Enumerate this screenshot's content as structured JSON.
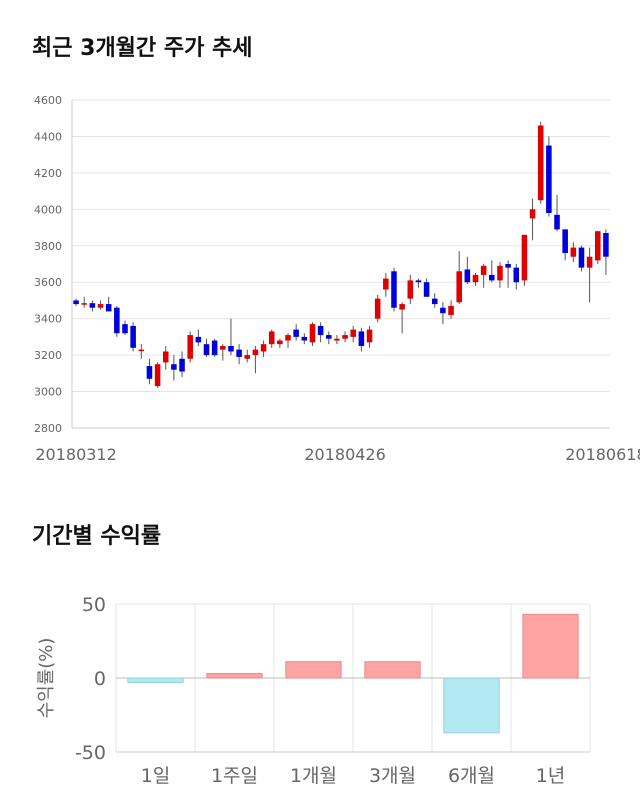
{
  "sections": {
    "price_title": "최근 3개월간 주가 추세",
    "returns_title": "기간별 수익률"
  },
  "chart_data": [
    {
      "type": "candlestick",
      "title": "최근 3개월간 주가 추세",
      "ylim": [
        2800,
        4600
      ],
      "yticks": [
        2800,
        3000,
        3200,
        3400,
        3600,
        3800,
        4000,
        4200,
        4400,
        4600
      ],
      "xtick_labels": [
        {
          "index": 0,
          "label": "20180312"
        },
        {
          "index": 33,
          "label": "20180426"
        },
        {
          "index": 65,
          "label": "20180618"
        }
      ],
      "grid": true,
      "colors": {
        "up": "#e00000",
        "down": "#0000dd",
        "wick": "#555555"
      },
      "candles": [
        [
          3500,
          3510,
          3470,
          3480
        ],
        [
          3480,
          3520,
          3460,
          3485
        ],
        [
          3485,
          3500,
          3440,
          3460
        ],
        [
          3460,
          3500,
          3450,
          3480
        ],
        [
          3480,
          3520,
          3440,
          3440
        ],
        [
          3460,
          3470,
          3300,
          3320
        ],
        [
          3370,
          3390,
          3310,
          3320
        ],
        [
          3360,
          3380,
          3220,
          3240
        ],
        [
          3230,
          3260,
          3180,
          3230
        ],
        [
          3140,
          3180,
          3040,
          3070
        ],
        [
          3030,
          3160,
          3020,
          3150
        ],
        [
          3160,
          3250,
          3120,
          3220
        ],
        [
          3150,
          3200,
          3060,
          3120
        ],
        [
          3180,
          3220,
          3080,
          3110
        ],
        [
          3180,
          3330,
          3160,
          3310
        ],
        [
          3300,
          3340,
          3250,
          3270
        ],
        [
          3260,
          3290,
          3190,
          3200
        ],
        [
          3280,
          3290,
          3190,
          3200
        ],
        [
          3230,
          3260,
          3170,
          3250
        ],
        [
          3250,
          3400,
          3200,
          3220
        ],
        [
          3230,
          3260,
          3150,
          3190
        ],
        [
          3180,
          3230,
          3160,
          3200
        ],
        [
          3200,
          3250,
          3100,
          3230
        ],
        [
          3220,
          3280,
          3190,
          3260
        ],
        [
          3260,
          3340,
          3240,
          3330
        ],
        [
          3260,
          3290,
          3240,
          3280
        ],
        [
          3280,
          3320,
          3240,
          3310
        ],
        [
          3340,
          3370,
          3280,
          3300
        ],
        [
          3300,
          3320,
          3260,
          3280
        ],
        [
          3270,
          3380,
          3250,
          3370
        ],
        [
          3360,
          3380,
          3270,
          3310
        ],
        [
          3310,
          3330,
          3260,
          3290
        ],
        [
          3280,
          3310,
          3260,
          3290
        ],
        [
          3290,
          3330,
          3270,
          3310
        ],
        [
          3300,
          3360,
          3270,
          3340
        ],
        [
          3330,
          3350,
          3220,
          3250
        ],
        [
          3270,
          3360,
          3240,
          3340
        ],
        [
          3400,
          3530,
          3380,
          3510
        ],
        [
          3560,
          3650,
          3520,
          3620
        ],
        [
          3660,
          3680,
          3440,
          3460
        ],
        [
          3450,
          3490,
          3320,
          3480
        ],
        [
          3510,
          3640,
          3480,
          3610
        ],
        [
          3610,
          3620,
          3570,
          3600
        ],
        [
          3600,
          3620,
          3530,
          3520
        ],
        [
          3510,
          3540,
          3460,
          3480
        ],
        [
          3460,
          3490,
          3370,
          3430
        ],
        [
          3420,
          3500,
          3400,
          3470
        ],
        [
          3490,
          3770,
          3480,
          3660
        ],
        [
          3670,
          3740,
          3590,
          3600
        ],
        [
          3600,
          3650,
          3580,
          3640
        ],
        [
          3640,
          3700,
          3570,
          3690
        ],
        [
          3640,
          3720,
          3600,
          3610
        ],
        [
          3610,
          3710,
          3570,
          3690
        ],
        [
          3700,
          3720,
          3570,
          3680
        ],
        [
          3680,
          3700,
          3560,
          3600
        ],
        [
          3610,
          3860,
          3580,
          3860
        ],
        [
          3950,
          4060,
          3830,
          4000
        ],
        [
          4050,
          4480,
          4030,
          4460
        ],
        [
          4350,
          4400,
          3960,
          3980
        ],
        [
          3970,
          4080,
          3880,
          3890
        ],
        [
          3890,
          3890,
          3720,
          3760
        ],
        [
          3740,
          3820,
          3710,
          3790
        ],
        [
          3790,
          3800,
          3660,
          3680
        ],
        [
          3680,
          3790,
          3490,
          3740
        ],
        [
          3720,
          3880,
          3700,
          3880
        ],
        [
          3870,
          3890,
          3640,
          3740
        ]
      ]
    },
    {
      "type": "bar",
      "title": "기간별 수익률",
      "ylabel": "수익률(%)",
      "ylim": [
        -50,
        50
      ],
      "yticks": [
        -50,
        0,
        50
      ],
      "grid": true,
      "colors": {
        "positive": "#ffa3a3",
        "negative": "#b3eaf2"
      },
      "categories": [
        "1일",
        "1주일",
        "1개월",
        "3개월",
        "6개월",
        "1년"
      ],
      "values": [
        -3,
        3,
        11,
        11,
        -37,
        43
      ]
    }
  ]
}
